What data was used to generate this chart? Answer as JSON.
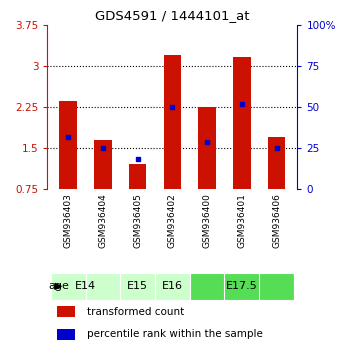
{
  "title": "GDS4591 / 1444101_at",
  "samples": [
    "GSM936403",
    "GSM936404",
    "GSM936405",
    "GSM936402",
    "GSM936400",
    "GSM936401",
    "GSM936406"
  ],
  "transformed_count": [
    2.35,
    1.65,
    1.2,
    3.2,
    2.25,
    3.17,
    1.7
  ],
  "percentile_rank": [
    1.7,
    1.5,
    1.3,
    2.25,
    1.6,
    2.3,
    1.5
  ],
  "ylim_left": [
    0.75,
    3.75
  ],
  "ylim_right": [
    0,
    100
  ],
  "yticks_left": [
    0.75,
    1.5,
    2.25,
    3.0,
    3.75
  ],
  "yticks_right": [
    0,
    25,
    50,
    75,
    100
  ],
  "ytick_labels_left": [
    "0.75",
    "1.5",
    "2.25",
    "3",
    "3.75"
  ],
  "ytick_labels_right": [
    "0",
    "25",
    "50",
    "75",
    "100%"
  ],
  "bar_color": "#cc1100",
  "dot_color": "#0000cc",
  "age_groups": [
    {
      "label": "E14",
      "samples": [
        "GSM936403",
        "GSM936404"
      ],
      "color": "#ccffcc"
    },
    {
      "label": "E15",
      "samples": [
        "GSM936405"
      ],
      "color": "#ccffcc"
    },
    {
      "label": "E16",
      "samples": [
        "GSM936402"
      ],
      "color": "#ccffcc"
    },
    {
      "label": "E17.5",
      "samples": [
        "GSM936400",
        "GSM936401",
        "GSM936406"
      ],
      "color": "#55dd55"
    }
  ],
  "bar_bottom": 0.75,
  "bar_width": 0.5,
  "background_color": "#ffffff",
  "sample_box_color": "#cccccc",
  "legend_items": [
    {
      "color": "#cc1100",
      "label": "transformed count"
    },
    {
      "color": "#0000cc",
      "label": "percentile rank within the sample"
    }
  ]
}
